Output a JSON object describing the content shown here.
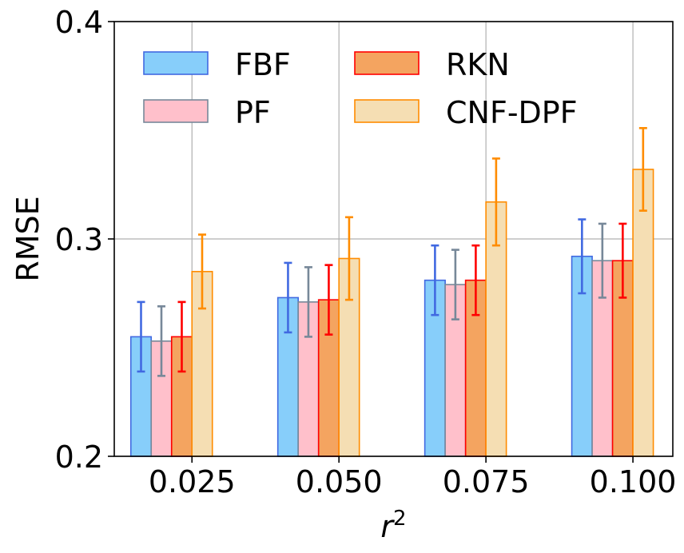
{
  "chart_data": {
    "type": "bar",
    "title": "",
    "xlabel": "r",
    "xlabel_superscript": "2",
    "ylabel": "RMSE",
    "categories": [
      "0.025",
      "0.050",
      "0.075",
      "0.100"
    ],
    "ylim": [
      0.2,
      0.4
    ],
    "yticks": [
      "0.2",
      "0.3",
      "0.4"
    ],
    "grid": true,
    "legend_position": "top-left",
    "series": [
      {
        "name": "FBF",
        "fill": "#87cefa",
        "edge": "#4169e1",
        "err_color": "#4169e1",
        "values": [
          0.255,
          0.273,
          0.281,
          0.292
        ],
        "errors": [
          0.016,
          0.016,
          0.016,
          0.017
        ]
      },
      {
        "name": "PF",
        "fill": "#ffc0cb",
        "edge": "#778899",
        "err_color": "#778899",
        "values": [
          0.253,
          0.271,
          0.279,
          0.29
        ],
        "errors": [
          0.016,
          0.016,
          0.016,
          0.017
        ]
      },
      {
        "name": "RKN",
        "fill": "#f4a460",
        "edge": "#ff0000",
        "err_color": "#ff0000",
        "values": [
          0.255,
          0.272,
          0.281,
          0.29
        ],
        "errors": [
          0.016,
          0.016,
          0.016,
          0.017
        ]
      },
      {
        "name": "CNF-DPF",
        "fill": "#f5deb3",
        "edge": "#ff8c00",
        "err_color": "#ff8c00",
        "values": [
          0.285,
          0.291,
          0.317,
          0.332
        ],
        "errors": [
          0.017,
          0.019,
          0.02,
          0.019
        ]
      }
    ]
  }
}
